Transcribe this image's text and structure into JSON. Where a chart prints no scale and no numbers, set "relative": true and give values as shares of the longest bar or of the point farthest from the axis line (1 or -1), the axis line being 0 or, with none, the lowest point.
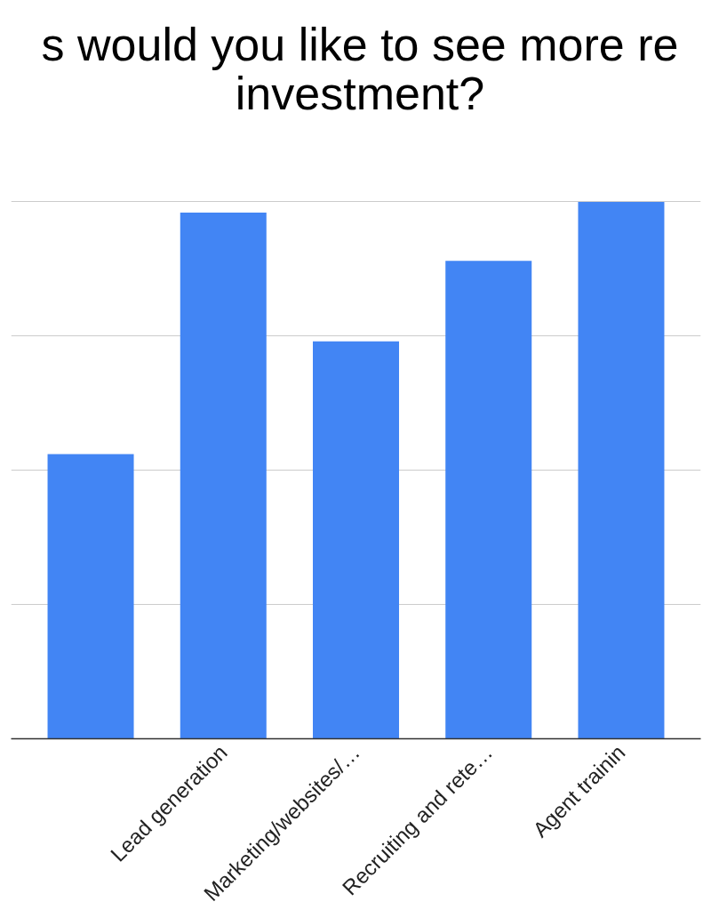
{
  "chart_data": {
    "type": "bar",
    "title": "s would you like to see more re investment?",
    "categories": [
      null,
      "Lead generation",
      "Marketing/websites/…",
      "Recruiting and rete…",
      "Agent trainin"
    ],
    "values": [
      0.53,
      0.98,
      0.74,
      0.89,
      1
    ],
    "color": "#4285f4",
    "relative": true,
    "grid": "y"
  }
}
